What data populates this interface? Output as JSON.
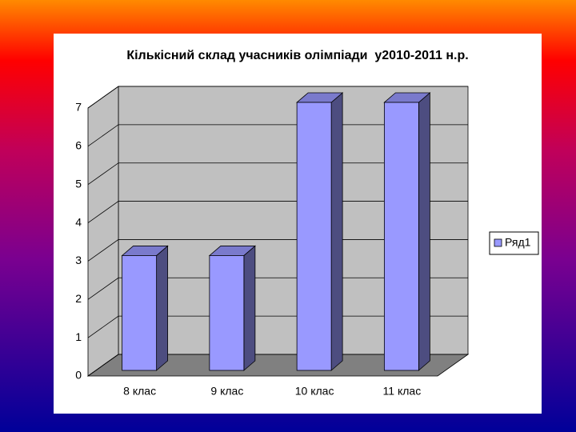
{
  "chart_data": {
    "type": "bar3d",
    "title": "Кількісний склад учасників олімпіади  у2010-2011 н.р.",
    "categories": [
      "8 клас",
      "9 клас",
      "10 клас",
      "11 клас"
    ],
    "series": [
      {
        "name": "Ряд1",
        "color": "#9999ff",
        "values": [
          3,
          3,
          7,
          7
        ]
      }
    ],
    "ylim": [
      0,
      7
    ],
    "yticks": [
      0,
      1,
      2,
      3,
      4,
      5,
      6,
      7
    ],
    "grid": true,
    "legend": "right"
  }
}
